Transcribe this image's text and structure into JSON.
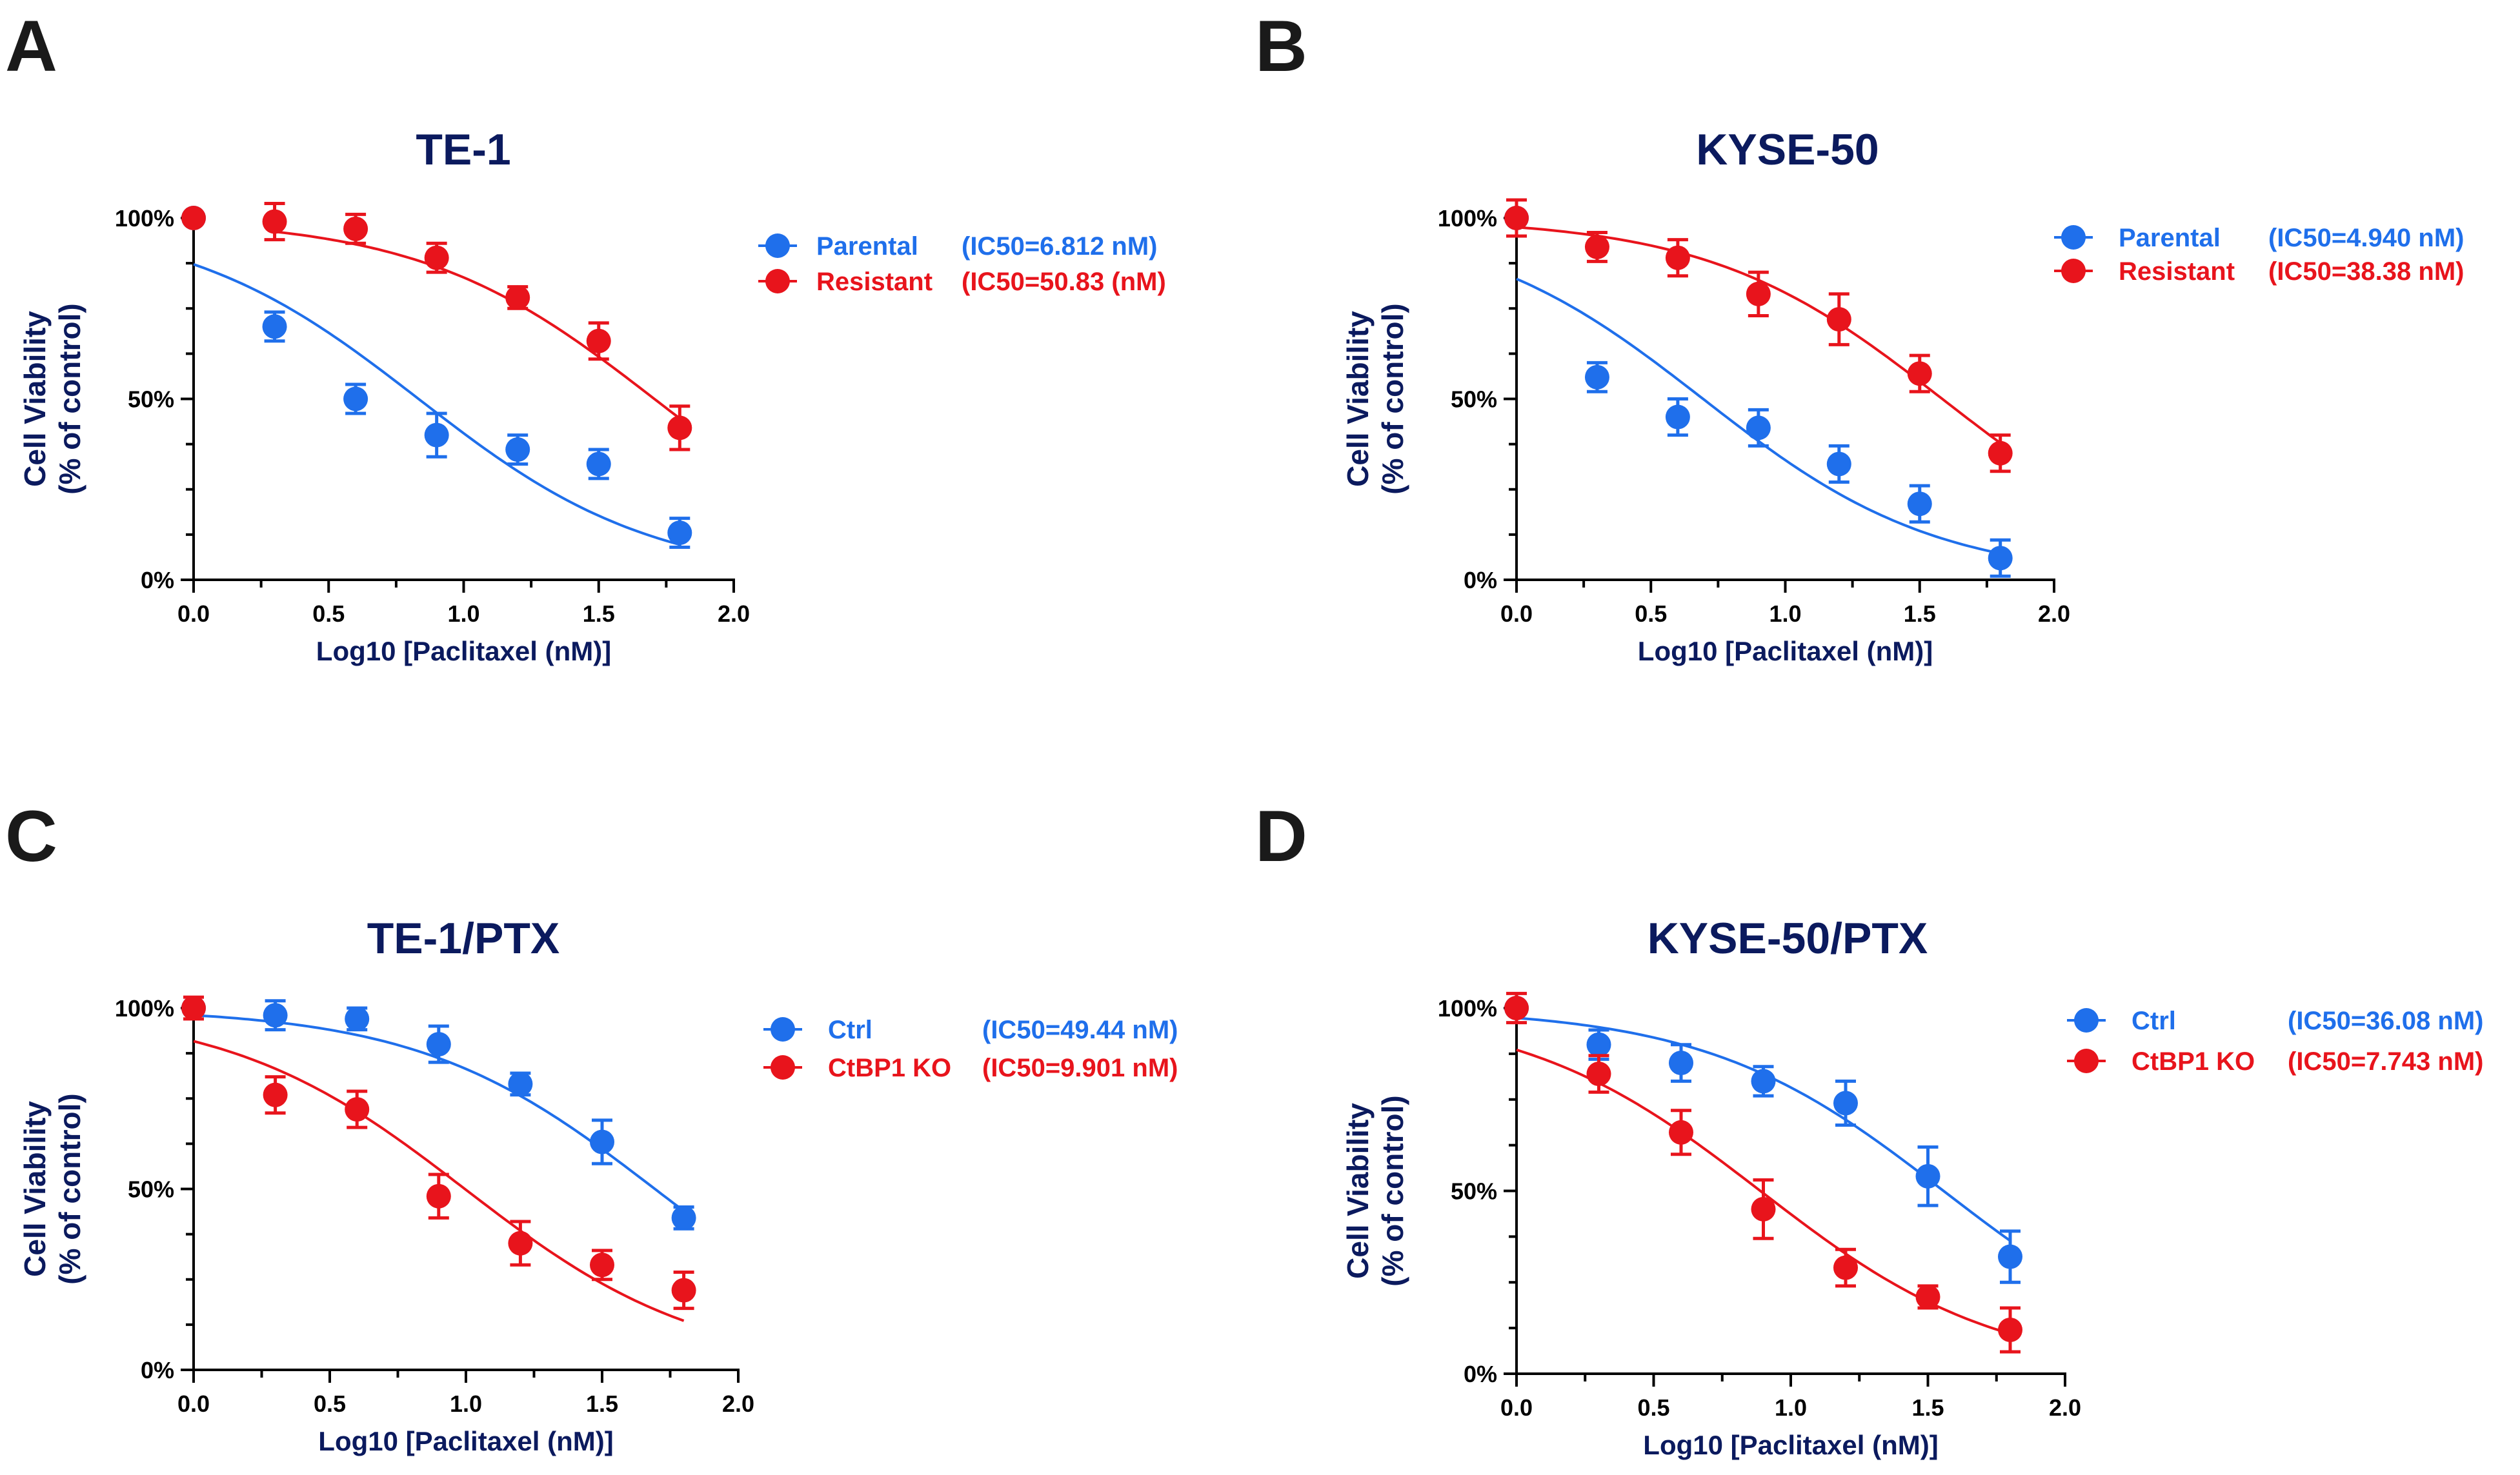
{
  "colors": {
    "navy": "#0b1a5e",
    "blue": "#1f6feb",
    "red": "#e8141c",
    "axis": "#000000"
  },
  "chart_data": [
    {
      "panel_label": "A",
      "type": "scatter",
      "title": "TE-1",
      "xlabel": "Log10 [Paclitaxel (nM)]",
      "ylabel_line1": "Cell Viability",
      "ylabel_line2": "(% of control)",
      "xlim": [
        0,
        2.0
      ],
      "ylim": [
        0,
        100
      ],
      "x_ticks": [
        "0.0",
        "0.5",
        "1.0",
        "1.5",
        "2.0"
      ],
      "y_ticks": [
        "0%",
        "50%",
        "100%"
      ],
      "x": [
        0,
        0.3,
        0.6,
        0.9,
        1.2,
        1.5,
        1.8
      ],
      "series": [
        {
          "name": "Parental",
          "ic50_label": "(IC50=6.812 nM)",
          "color": "#1f6feb",
          "values": [
            100,
            70,
            50,
            40,
            36,
            32,
            13
          ],
          "errors": [
            0,
            4,
            4,
            6,
            4,
            4,
            4
          ],
          "fit_x": [
            0,
            1.8
          ],
          "fit_top": 100,
          "fit_bottom": 0,
          "fit_logic50": 0.833
        },
        {
          "name": "Resistant",
          "ic50_label": "(IC50=50.83 (nM)",
          "color": "#e8141c",
          "values": [
            100,
            99,
            97,
            89,
            78,
            66,
            42
          ],
          "errors": [
            0,
            5,
            4,
            4,
            3,
            5,
            6
          ],
          "fit_x": [
            0.3,
            1.8
          ],
          "fit_top": 100,
          "fit_bottom": 0,
          "fit_logic50": 1.706
        }
      ]
    },
    {
      "panel_label": "B",
      "type": "scatter",
      "title": "KYSE-50",
      "xlabel": "Log10 [Paclitaxel (nM)]",
      "ylabel_line1": "Cell Viability",
      "ylabel_line2": "(% of control)",
      "xlim": [
        0,
        2.0
      ],
      "ylim": [
        0,
        100
      ],
      "x_ticks": [
        "0.0",
        "0.5",
        "1.0",
        "1.5",
        "2.0"
      ],
      "y_ticks": [
        "0%",
        "50%",
        "100%"
      ],
      "x": [
        0,
        0.3,
        0.6,
        0.9,
        1.2,
        1.5,
        1.8
      ],
      "series": [
        {
          "name": "Parental",
          "ic50_label": "(IC50=4.940 nM)",
          "color": "#1f6feb",
          "values": [
            100,
            56,
            45,
            42,
            32,
            21,
            6
          ],
          "errors": [
            0,
            4,
            5,
            5,
            5,
            5,
            5
          ],
          "fit_x": [
            0,
            1.8
          ],
          "fit_top": 100,
          "fit_bottom": 0,
          "fit_logic50": 0.694
        },
        {
          "name": "Resistant",
          "ic50_label": "(IC50=38.38 nM)",
          "color": "#e8141c",
          "values": [
            100,
            92,
            89,
            79,
            72,
            57,
            35
          ],
          "errors": [
            5,
            4,
            5,
            6,
            7,
            5,
            5
          ],
          "fit_x": [
            0,
            1.8
          ],
          "fit_top": 100,
          "fit_bottom": 0,
          "fit_logic50": 1.584
        }
      ]
    },
    {
      "panel_label": "C",
      "type": "scatter",
      "title": "TE-1/PTX",
      "xlabel": "Log10 [Paclitaxel (nM)]",
      "ylabel_line1": "Cell Viability",
      "ylabel_line2": "(% of control)",
      "xlim": [
        0,
        2.0
      ],
      "ylim": [
        0,
        100
      ],
      "x_ticks": [
        "0.0",
        "0.5",
        "1.0",
        "1.5",
        "2.0"
      ],
      "y_ticks": [
        "0%",
        "50%",
        "100%"
      ],
      "x": [
        0,
        0.3,
        0.6,
        0.9,
        1.2,
        1.5,
        1.8
      ],
      "series": [
        {
          "name": "Ctrl",
          "ic50_label": "(IC50=49.44 nM)",
          "color": "#1f6feb",
          "values": [
            100,
            98,
            97,
            90,
            79,
            63,
            42
          ],
          "errors": [
            0,
            4,
            3,
            5,
            3,
            6,
            3
          ],
          "fit_x": [
            0,
            1.8
          ],
          "fit_top": 100,
          "fit_bottom": 0,
          "fit_logic50": 1.694
        },
        {
          "name": "CtBP1 KO",
          "ic50_label": "(IC50=9.901 nM)",
          "color": "#e8141c",
          "values": [
            100,
            76,
            72,
            48,
            35,
            29,
            22
          ],
          "errors": [
            3,
            5,
            5,
            6,
            6,
            4,
            5
          ],
          "fit_x": [
            0,
            1.8
          ],
          "fit_top": 100,
          "fit_bottom": 0,
          "fit_logic50": 0.996
        }
      ]
    },
    {
      "panel_label": "D",
      "type": "scatter",
      "title": "KYSE-50/PTX",
      "xlabel": "Log10 [Paclitaxel (nM)]",
      "ylabel_line1": "Cell Viability",
      "ylabel_line2": "(% of control)",
      "xlim": [
        0,
        2.0
      ],
      "ylim": [
        0,
        100
      ],
      "x_ticks": [
        "0.0",
        "0.5",
        "1.0",
        "1.5",
        "2.0"
      ],
      "y_ticks": [
        "0%",
        "50%",
        "100%"
      ],
      "x": [
        0,
        0.3,
        0.6,
        0.9,
        1.2,
        1.5,
        1.8
      ],
      "series": [
        {
          "name": "Ctrl",
          "ic50_label": "(IC50=36.08 nM)",
          "color": "#1f6feb",
          "values": [
            100,
            90,
            85,
            80,
            74,
            54,
            32
          ],
          "errors": [
            0,
            4,
            5,
            4,
            6,
            8,
            7
          ],
          "fit_x": [
            0,
            1.8
          ],
          "fit_top": 100,
          "fit_bottom": 0,
          "fit_logic50": 1.557
        },
        {
          "name": "CtBP1 KO",
          "ic50_label": "(IC50=7.743 nM)",
          "color": "#e8141c",
          "values": [
            100,
            82,
            66,
            45,
            29,
            21,
            12
          ],
          "errors": [
            4,
            5,
            6,
            8,
            5,
            3,
            6
          ],
          "fit_x": [
            0,
            1.8
          ],
          "fit_top": 100,
          "fit_bottom": 0,
          "fit_logic50": 0.889
        }
      ]
    }
  ]
}
